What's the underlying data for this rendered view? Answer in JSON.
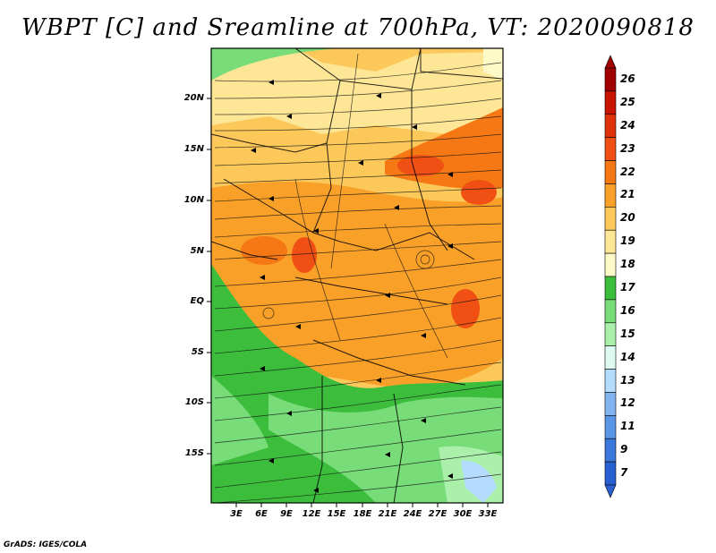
{
  "title": "WBPT [C] and Sreamline at 700hPa, VT: 2020090818",
  "footer": "GrADS: IGES/COLA",
  "map": {
    "lat_labels": [
      "20N",
      "15N",
      "10N",
      "5N",
      "EQ",
      "5S",
      "10S",
      "15S"
    ],
    "lon_labels": [
      "3E",
      "6E",
      "9E",
      "12E",
      "15E",
      "18E",
      "21E",
      "24E",
      "27E",
      "30E",
      "33E"
    ]
  },
  "colorbar": {
    "labels": [
      "26",
      "25",
      "24",
      "23",
      "22",
      "21",
      "20",
      "19",
      "18",
      "17",
      "16",
      "15",
      "14",
      "13",
      "12",
      "11",
      "9",
      "7"
    ],
    "colors": [
      "#a00000",
      "#c81400",
      "#e0320a",
      "#f05014",
      "#f57814",
      "#f8a028",
      "#fcc85a",
      "#fde696",
      "#fefac8",
      "#3cbe3c",
      "#78dc78",
      "#aaf0aa",
      "#dcfaf0",
      "#b4dcff",
      "#82b4f0",
      "#5a96e6",
      "#3c78dc",
      "#2860d2"
    ]
  }
}
